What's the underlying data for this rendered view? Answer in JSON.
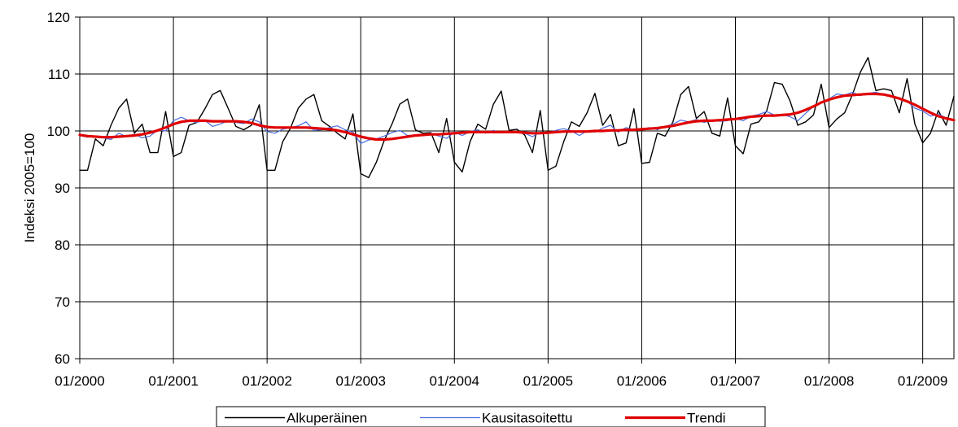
{
  "chart_data": {
    "type": "line",
    "ylabel": "Indeksi 2005=100",
    "xlabel": "",
    "ylim": [
      60,
      120
    ],
    "y_ticks": [
      60,
      70,
      80,
      90,
      100,
      110,
      120
    ],
    "x_start": "01/2000",
    "x_end": "06/2009",
    "x_ticks": [
      "01/2000",
      "01/2001",
      "01/2002",
      "01/2003",
      "01/2004",
      "01/2005",
      "01/2006",
      "01/2007",
      "01/2008",
      "01/2009"
    ],
    "grid": true,
    "legend_position": "bottom-center",
    "series": [
      {
        "name": "Alkuperäinen",
        "color": "#000000",
        "values": [
          93.1,
          93.1,
          98.6,
          97.4,
          101.0,
          104.0,
          105.6,
          99.6,
          101.2,
          96.2,
          96.2,
          103.4,
          95.5,
          96.2,
          101.0,
          101.5,
          103.8,
          106.4,
          107.1,
          104.0,
          100.8,
          100.2,
          101.0,
          104.6,
          93.1,
          93.1,
          98.1,
          100.5,
          104.0,
          105.6,
          106.4,
          101.8,
          100.8,
          99.6,
          98.6,
          103.0,
          92.5,
          91.8,
          94.5,
          98.3,
          101.2,
          104.7,
          105.6,
          100.2,
          99.6,
          99.7,
          96.2,
          102.2,
          94.5,
          92.8,
          98.1,
          101.2,
          100.3,
          104.7,
          107.0,
          100.1,
          100.3,
          99.3,
          96.2,
          103.6,
          93.1,
          93.8,
          98.1,
          101.6,
          100.8,
          103.2,
          106.6,
          101.0,
          102.9,
          97.4,
          97.9,
          103.9,
          94.3,
          94.5,
          99.6,
          99.1,
          101.6,
          106.4,
          107.8,
          102.2,
          103.4,
          99.6,
          99.1,
          105.8,
          97.4,
          96.0,
          101.2,
          101.6,
          103.5,
          108.5,
          108.2,
          105.3,
          101.0,
          101.6,
          102.8,
          108.2,
          100.6,
          102.1,
          103.2,
          106.4,
          110.3,
          112.9,
          107.1,
          107.4,
          107.1,
          103.2,
          109.2,
          101.2,
          97.9,
          99.6,
          103.6,
          101.0,
          106.1
        ]
      },
      {
        "name": "Kausitasoitettu",
        "color": "#4a6ee0",
        "values": [
          99.2,
          98.9,
          99.1,
          98.8,
          98.5,
          99.6,
          99.0,
          99.4,
          98.8,
          99.1,
          100.2,
          100.0,
          101.8,
          102.4,
          101.8,
          101.5,
          101.9,
          100.8,
          101.2,
          101.8,
          101.5,
          101.3,
          102.1,
          101.6,
          99.9,
          99.6,
          100.3,
          100.6,
          100.9,
          101.6,
          100.1,
          100.2,
          100.6,
          100.9,
          100.2,
          99.8,
          97.8,
          98.4,
          98.6,
          99.1,
          99.7,
          100.1,
          99.2,
          99.3,
          99.4,
          99.6,
          99.1,
          98.7,
          99.8,
          99.2,
          99.9,
          100.2,
          99.6,
          100.1,
          99.7,
          99.8,
          99.9,
          99.6,
          99.0,
          99.8,
          99.6,
          100.1,
          100.4,
          100.0,
          99.2,
          100.0,
          99.8,
          100.5,
          101.0,
          99.8,
          100.6,
          100.2,
          100.3,
          100.6,
          100.2,
          100.8,
          101.2,
          101.9,
          101.6,
          102.0,
          101.5,
          101.9,
          101.7,
          101.8,
          102.2,
          101.8,
          102.6,
          102.9,
          103.4,
          102.8,
          102.9,
          102.5,
          101.8,
          103.1,
          104.3,
          105.0,
          105.6,
          106.5,
          106.3,
          106.8,
          106.2,
          106.6,
          106.8,
          106.4,
          106.2,
          105.7,
          105.2,
          104.0,
          103.5,
          102.6,
          103.0,
          102.3,
          101.9
        ]
      },
      {
        "name": "Trendi",
        "color": "#e00000",
        "values": [
          99.3,
          99.1,
          99.0,
          98.9,
          98.9,
          99.0,
          99.1,
          99.2,
          99.4,
          99.7,
          100.1,
          100.6,
          101.2,
          101.6,
          101.8,
          101.8,
          101.8,
          101.7,
          101.7,
          101.7,
          101.7,
          101.6,
          101.4,
          101.0,
          100.7,
          100.6,
          100.6,
          100.6,
          100.6,
          100.6,
          100.5,
          100.4,
          100.3,
          100.1,
          99.8,
          99.4,
          99.0,
          98.7,
          98.5,
          98.5,
          98.6,
          98.8,
          99.0,
          99.2,
          99.3,
          99.4,
          99.4,
          99.5,
          99.6,
          99.7,
          99.8,
          99.8,
          99.8,
          99.8,
          99.8,
          99.8,
          99.8,
          99.7,
          99.6,
          99.6,
          99.7,
          99.8,
          99.9,
          99.9,
          99.9,
          99.9,
          100.0,
          100.0,
          100.1,
          100.1,
          100.2,
          100.2,
          100.3,
          100.4,
          100.5,
          100.7,
          100.9,
          101.2,
          101.5,
          101.7,
          101.8,
          101.8,
          101.9,
          102.0,
          102.1,
          102.3,
          102.5,
          102.6,
          102.7,
          102.7,
          102.8,
          102.9,
          103.2,
          103.7,
          104.3,
          105.0,
          105.5,
          105.9,
          106.2,
          106.3,
          106.4,
          106.5,
          106.5,
          106.4,
          106.1,
          105.7,
          105.2,
          104.6,
          103.9,
          103.2,
          102.6,
          102.2,
          101.9
        ]
      }
    ]
  }
}
